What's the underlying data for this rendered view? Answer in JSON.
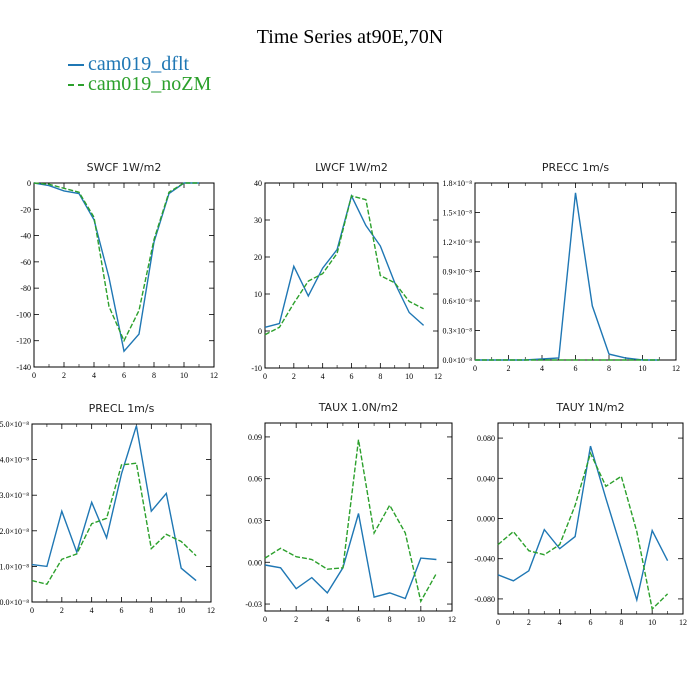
{
  "page": {
    "title": "Time Series at90E,70N"
  },
  "legend": [
    {
      "label": "cam019_dflt",
      "color": "#1f77b4"
    },
    {
      "label": "cam019_noZM",
      "color": "#2ca02c"
    }
  ],
  "chart_data": [
    {
      "type": "line",
      "title": "SWCF   1W/m2",
      "xlim": [
        0,
        12
      ],
      "ylim": [
        -140,
        0
      ],
      "xticks": [
        "0",
        "2",
        "4",
        "6",
        "8",
        "10",
        "12"
      ],
      "yticks": [
        "-140",
        "-120",
        "-100",
        "-80",
        "-60",
        "-40",
        "-20",
        "0"
      ],
      "x": [
        0,
        1,
        2,
        3,
        4,
        5,
        6,
        7,
        8,
        9,
        10,
        11
      ],
      "series": [
        {
          "name": "cam019_dflt",
          "values": [
            0,
            -2,
            -6,
            -8,
            -28,
            -72,
            -128,
            -115,
            -45,
            -8,
            0,
            0
          ]
        },
        {
          "name": "cam019_noZM",
          "values": [
            0,
            -1,
            -4,
            -7,
            -26,
            -94,
            -120,
            -97,
            -43,
            -7,
            0,
            0
          ]
        }
      ]
    },
    {
      "type": "line",
      "title": "LWCF   1W/m2",
      "xlim": [
        0,
        12
      ],
      "ylim": [
        -10,
        40
      ],
      "xticks": [
        "0",
        "2",
        "4",
        "6",
        "8",
        "10",
        "12"
      ],
      "yticks": [
        "-10",
        "0",
        "10",
        "20",
        "30",
        "40"
      ],
      "x": [
        0,
        1,
        2,
        3,
        4,
        5,
        6,
        7,
        8,
        9,
        10,
        11
      ],
      "series": [
        {
          "name": "cam019_dflt",
          "values": [
            1,
            2,
            17.5,
            9.5,
            17,
            22,
            36.5,
            28.5,
            23,
            13,
            5,
            1.5
          ]
        },
        {
          "name": "cam019_noZM",
          "values": [
            -1,
            1,
            7.5,
            13.5,
            15.5,
            21,
            36.5,
            35.5,
            15,
            13,
            8,
            6
          ]
        }
      ]
    },
    {
      "type": "line",
      "title": "PRECC   1m/s",
      "xlim": [
        0,
        12
      ],
      "ylim": [
        0,
        1.8
      ],
      "ytick_values": [
        0,
        0.3,
        0.6,
        0.9,
        1.2,
        1.5,
        1.8
      ],
      "xticks": [
        "0",
        "2",
        "4",
        "6",
        "8",
        "10",
        "12"
      ],
      "yticks": [
        "0.0×10⁻⁸",
        "0.3×10⁻⁸",
        "0.6×10⁻⁸",
        "0.9×10⁻⁸",
        "1.2×10⁻⁸",
        "1.5×10⁻⁸",
        "1.8×10⁻⁸"
      ],
      "x": [
        0,
        1,
        2,
        3,
        4,
        5,
        6,
        7,
        8,
        9,
        10,
        11
      ],
      "series": [
        {
          "name": "cam019_dflt",
          "values": [
            0,
            0,
            0,
            0,
            0.01,
            0.02,
            1.7,
            0.55,
            0.06,
            0.02,
            0,
            0
          ]
        },
        {
          "name": "cam019_noZM",
          "values": [
            0,
            0,
            0,
            0,
            0,
            0,
            0,
            0,
            0,
            0,
            0,
            0
          ]
        }
      ]
    },
    {
      "type": "line",
      "title": "PRECL   1m/s",
      "xlim": [
        0,
        12
      ],
      "ylim": [
        0,
        5
      ],
      "ytick_values": [
        0,
        1,
        2,
        3,
        4,
        5
      ],
      "xticks": [
        "0",
        "2",
        "4",
        "6",
        "8",
        "10",
        "12"
      ],
      "yticks": [
        "0.0×10⁻⁸",
        "1.0×10⁻⁸",
        "2.0×10⁻⁸",
        "3.0×10⁻⁸",
        "4.0×10⁻⁸",
        "5.0×10⁻⁸"
      ],
      "x": [
        0,
        1,
        2,
        3,
        4,
        5,
        6,
        7,
        8,
        9,
        10,
        11
      ],
      "series": [
        {
          "name": "cam019_dflt",
          "values": [
            1.05,
            1,
            2.55,
            1.4,
            2.8,
            1.8,
            3.6,
            4.95,
            2.55,
            3.05,
            0.95,
            0.6
          ]
        },
        {
          "name": "cam019_noZM",
          "values": [
            0.6,
            0.5,
            1.2,
            1.35,
            2.2,
            2.35,
            3.85,
            3.9,
            1.5,
            1.9,
            1.7,
            1.3
          ]
        }
      ]
    },
    {
      "type": "line",
      "title": "TAUX   1.0N/m2",
      "xlim": [
        0,
        12
      ],
      "ylim": [
        -0.035,
        0.1
      ],
      "ytick_values": [
        -0.03,
        0,
        0.03,
        0.06,
        0.09
      ],
      "xticks": [
        "0",
        "2",
        "4",
        "6",
        "8",
        "10",
        "12"
      ],
      "yticks": [
        "-0.03",
        "0.00",
        "0.03",
        "0.06",
        "0.09"
      ],
      "x": [
        0,
        1,
        2,
        3,
        4,
        5,
        6,
        7,
        8,
        9,
        10,
        11
      ],
      "series": [
        {
          "name": "cam019_dflt",
          "values": [
            -0.002,
            -0.004,
            -0.019,
            -0.011,
            -0.022,
            -0.004,
            0.035,
            -0.025,
            -0.022,
            -0.026,
            0.003,
            0.002
          ]
        },
        {
          "name": "cam019_noZM",
          "values": [
            0.003,
            0.01,
            0.004,
            0.002,
            -0.005,
            -0.004,
            0.088,
            0.021,
            0.041,
            0.021,
            -0.028,
            -0.008
          ]
        }
      ]
    },
    {
      "type": "line",
      "title": "TAUY   1N/m2",
      "xlim": [
        0,
        12
      ],
      "ylim": [
        -0.095,
        0.095
      ],
      "ytick_values": [
        -0.08,
        -0.04,
        0,
        0.04,
        0.08
      ],
      "xticks": [
        "0",
        "2",
        "4",
        "6",
        "8",
        "10",
        "12"
      ],
      "yticks": [
        "-0.080",
        "-0.040",
        "0.000",
        "0.040",
        "0.080"
      ],
      "x": [
        0,
        1,
        2,
        3,
        4,
        5,
        6,
        7,
        8,
        9,
        10,
        11
      ],
      "series": [
        {
          "name": "cam019_dflt",
          "values": [
            -0.056,
            -0.062,
            -0.052,
            -0.011,
            -0.03,
            -0.018,
            0.072,
            0.02,
            -0.03,
            -0.081,
            -0.012,
            -0.042
          ]
        },
        {
          "name": "cam019_noZM",
          "values": [
            -0.026,
            -0.013,
            -0.032,
            -0.036,
            -0.026,
            0.013,
            0.065,
            0.032,
            0.042,
            -0.013,
            -0.09,
            -0.075
          ]
        }
      ]
    }
  ]
}
